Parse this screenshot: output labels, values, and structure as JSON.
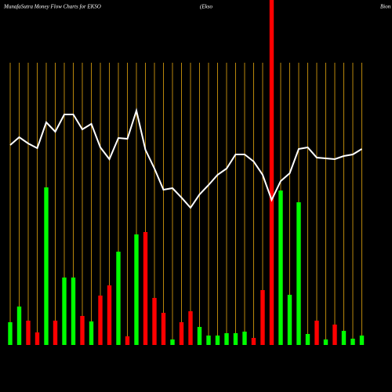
{
  "chart_data": {
    "type": "bar",
    "title_parts": [
      "MunafaSutra  Money Flow  Charts for EKSO",
      "(Ekso",
      "Bion"
    ],
    "categories": [
      null,
      null,
      null,
      null,
      null,
      null,
      null,
      null,
      null,
      null,
      null,
      null,
      null,
      null,
      null,
      null,
      null,
      null,
      null,
      null,
      null,
      null,
      null,
      null,
      null,
      null,
      null,
      null,
      null,
      null,
      null,
      null,
      null,
      null,
      null,
      null,
      null,
      null,
      null,
      null
    ],
    "values": [
      29,
      49,
      31,
      16,
      201,
      31,
      86,
      86,
      37,
      30,
      63,
      76,
      119,
      11,
      141,
      144,
      60,
      41,
      7,
      29,
      43,
      23,
      12,
      12,
      15,
      15,
      17,
      9,
      70,
      440,
      197,
      64,
      182,
      14,
      31,
      7,
      26,
      18,
      8,
      12
    ],
    "bar_colors": [
      "#00ff00",
      "#00ff00",
      "#ff0000",
      "#ff0000",
      "#00ff00",
      "#ff0000",
      "#00ff00",
      "#00ff00",
      "#ff0000",
      "#00ff00",
      "#ff0000",
      "#ff0000",
      "#00ff00",
      "#ff0000",
      "#00ff00",
      "#ff0000",
      "#ff0000",
      "#ff0000",
      "#00ff00",
      "#ff0000",
      "#ff0000",
      "#00ff00",
      "#00ff00",
      "#00ff00",
      "#00ff00",
      "#00ff00",
      "#00ff00",
      "#ff0000",
      "#ff0000",
      "#ff0000",
      "#00ff00",
      "#00ff00",
      "#00ff00",
      "#00ff00",
      "#ff0000",
      "#00ff00",
      "#ff0000",
      "#00ff00",
      "#00ff00",
      "#00ff00"
    ],
    "line": {
      "color": "#ffffff",
      "values": [
        255,
        265,
        257,
        251,
        284,
        272,
        294,
        294,
        275,
        282,
        252,
        237,
        264,
        263,
        299,
        249,
        225,
        198,
        200,
        188,
        175,
        192,
        204,
        217,
        225,
        243,
        243,
        234,
        217,
        185,
        209,
        219,
        250,
        252,
        239,
        238,
        237,
        241,
        243,
        250
      ]
    },
    "ylim": [
      0,
      440
    ],
    "grid": true,
    "grid_color": "#b8860b"
  }
}
